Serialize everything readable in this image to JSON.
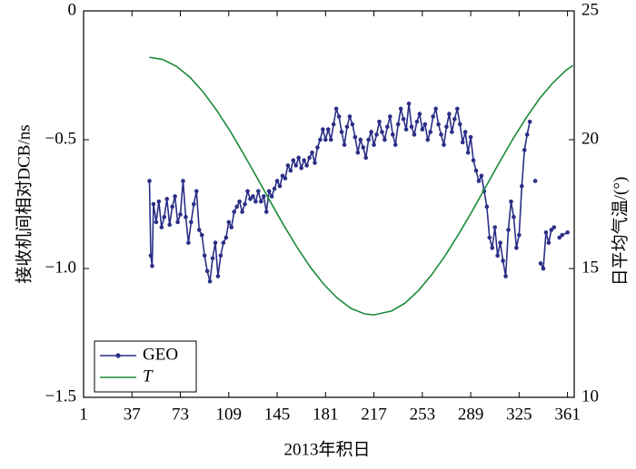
{
  "chart_data": {
    "type": "line",
    "xlabel": "2013年积日",
    "ylabel": "接收机间相对DCB/ns",
    "y2label": "日平均气温/(°)",
    "xlim": [
      1,
      366
    ],
    "xticks": [
      1,
      37,
      73,
      109,
      145,
      181,
      217,
      253,
      289,
      325,
      361
    ],
    "ylim": [
      -1.5,
      0
    ],
    "yticks": [
      0,
      {
        "value": -0.5,
        "label": "−0.5"
      },
      {
        "value": -1,
        "label": "−1.0"
      },
      {
        "value": -1.5,
        "label": "−1.5"
      }
    ],
    "y2lim": [
      10,
      25
    ],
    "y2ticks": [
      10,
      15,
      20,
      25
    ],
    "legend": "lower left",
    "series": [
      {
        "name": "GEO",
        "color": "#2b2f86",
        "marker": true,
        "x": [
          50,
          51,
          52,
          53,
          55,
          57,
          59,
          61,
          63,
          65,
          67,
          69,
          71,
          73,
          75,
          77,
          79,
          81,
          83,
          85,
          87,
          89,
          91,
          93,
          95,
          97,
          99,
          101,
          103,
          105,
          107,
          109,
          111,
          113,
          115,
          117,
          119,
          121,
          123,
          125,
          127,
          129,
          131,
          133,
          135,
          137,
          139,
          141,
          143,
          145,
          147,
          149,
          151,
          153,
          155,
          157,
          159,
          161,
          163,
          165,
          167,
          169,
          171,
          173,
          175,
          177,
          179,
          181,
          183,
          185,
          187,
          189,
          191,
          193,
          195,
          197,
          199,
          201,
          203,
          205,
          207,
          209,
          211,
          213,
          215,
          217,
          219,
          221,
          223,
          225,
          227,
          229,
          231,
          233,
          235,
          237,
          239,
          241,
          243,
          245,
          247,
          249,
          251,
          253,
          255,
          257,
          259,
          261,
          263,
          265,
          267,
          269,
          271,
          273,
          275,
          277,
          279,
          281,
          283,
          285,
          287,
          289,
          291,
          293,
          295,
          297,
          299,
          301,
          303,
          305,
          307,
          309,
          311,
          313,
          315,
          317,
          319,
          321,
          323,
          325,
          327,
          329,
          331,
          333,
          335,
          337,
          339,
          341,
          343,
          345,
          347,
          349,
          351,
          353,
          355,
          357,
          361
        ],
        "values": [
          -0.66,
          -0.95,
          -0.99,
          -0.75,
          -0.82,
          -0.74,
          -0.84,
          -0.8,
          -0.73,
          -0.83,
          -0.76,
          -0.72,
          -0.82,
          -0.79,
          -0.66,
          -0.8,
          -0.9,
          -0.82,
          -0.75,
          -0.7,
          -0.85,
          -0.87,
          -0.95,
          -1.01,
          -1.05,
          -0.96,
          -0.9,
          -1.03,
          -0.95,
          -0.9,
          -0.88,
          -0.82,
          -0.84,
          -0.78,
          -0.76,
          -0.74,
          -0.78,
          -0.75,
          -0.7,
          -0.73,
          -0.72,
          -0.74,
          -0.7,
          -0.74,
          -0.72,
          -0.78,
          -0.7,
          -0.72,
          -0.69,
          -0.66,
          -0.68,
          -0.64,
          -0.65,
          -0.6,
          -0.62,
          -0.58,
          -0.6,
          -0.57,
          -0.61,
          -0.58,
          -0.6,
          -0.57,
          -0.55,
          -0.59,
          -0.53,
          -0.5,
          -0.46,
          -0.5,
          -0.46,
          -0.5,
          -0.44,
          -0.38,
          -0.41,
          -0.47,
          -0.52,
          -0.45,
          -0.41,
          -0.44,
          -0.49,
          -0.55,
          -0.5,
          -0.53,
          -0.57,
          -0.5,
          -0.47,
          -0.52,
          -0.48,
          -0.43,
          -0.47,
          -0.5,
          -0.45,
          -0.41,
          -0.48,
          -0.52,
          -0.44,
          -0.38,
          -0.42,
          -0.46,
          -0.36,
          -0.45,
          -0.48,
          -0.43,
          -0.4,
          -0.46,
          -0.44,
          -0.5,
          -0.47,
          -0.41,
          -0.38,
          -0.44,
          -0.48,
          -0.52,
          -0.45,
          -0.4,
          -0.47,
          -0.42,
          -0.38,
          -0.44,
          -0.51,
          -0.47,
          -0.55,
          -0.49,
          -0.58,
          -0.62,
          -0.66,
          -0.64,
          -0.7,
          -0.76,
          -0.88,
          -0.92,
          -0.84,
          -0.95,
          -0.9,
          -0.97,
          -1.03,
          -0.85,
          -0.74,
          -0.8,
          -0.92,
          -0.87,
          -0.68,
          -0.54,
          -0.48,
          -0.43,
          null,
          -0.66,
          null,
          -0.98,
          -1.0,
          -0.86,
          -0.9,
          -0.85,
          -0.84,
          null,
          -0.88,
          -0.87,
          -0.86
        ]
      },
      {
        "name": "T",
        "color": "#1a8a3a",
        "marker": false,
        "axis": "y2",
        "x": [
          50,
          60,
          70,
          80,
          90,
          100,
          110,
          120,
          130,
          140,
          150,
          160,
          170,
          180,
          190,
          200,
          210,
          217,
          230,
          240,
          250,
          260,
          270,
          280,
          290,
          300,
          310,
          320,
          330,
          340,
          350,
          360,
          365
        ],
        "values": [
          23.2,
          23.11,
          22.85,
          22.43,
          21.85,
          21.14,
          20.34,
          19.45,
          18.53,
          17.59,
          16.67,
          15.81,
          15.03,
          14.37,
          13.84,
          13.45,
          13.24,
          13.2,
          13.35,
          13.65,
          14.14,
          14.76,
          15.5,
          16.33,
          17.22,
          18.15,
          19.09,
          19.99,
          20.83,
          21.58,
          22.2,
          22.7,
          22.88
        ]
      }
    ]
  }
}
